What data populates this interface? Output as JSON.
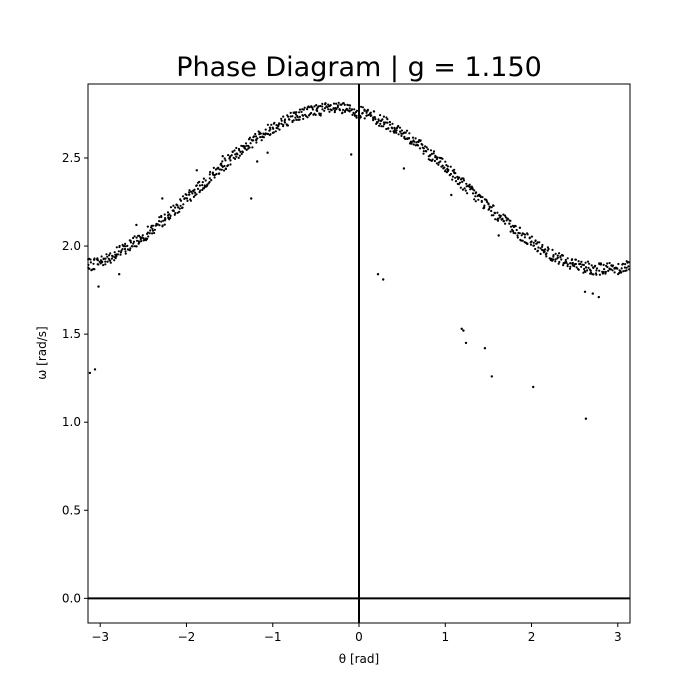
{
  "chart_data": {
    "type": "scatter",
    "title": "Phase Diagram | g = 1.150",
    "xlabel": "θ [rad]",
    "ylabel": "ω [rad/s]",
    "xlim": [
      -3.1416,
      3.1416
    ],
    "ylim": [
      -0.14,
      2.92
    ],
    "xticks": [
      -3,
      -2,
      -1,
      0,
      1,
      2,
      3
    ],
    "xtick_labels": [
      "−3",
      "−2",
      "−1",
      "0",
      "1",
      "2",
      "3"
    ],
    "yticks": [
      0.0,
      0.5,
      1.0,
      1.5,
      2.0,
      2.5
    ],
    "ytick_labels": [
      "0.0",
      "0.5",
      "1.0",
      "1.5",
      "2.0",
      "2.5"
    ],
    "reference_lines": {
      "horizontal_y": 0,
      "vertical_x": 0
    },
    "grid": false,
    "marker_color": "#000000",
    "band": {
      "description_formula": "omega = 2.325 + 0.455*cos(theta + 0.3)",
      "x_start": -3.14,
      "x_end": 3.14,
      "x_step": 0.02,
      "omega_center": 2.325,
      "omega_amplitude": 0.455,
      "phase_shift": 0.3,
      "spread": 0.035
    },
    "outliers": [
      {
        "x": -3.12,
        "y": 1.28
      },
      {
        "x": -3.06,
        "y": 1.3
      },
      {
        "x": -3.02,
        "y": 1.77
      },
      {
        "x": -2.78,
        "y": 1.84
      },
      {
        "x": -2.58,
        "y": 2.12
      },
      {
        "x": -2.28,
        "y": 2.27
      },
      {
        "x": -1.88,
        "y": 2.43
      },
      {
        "x": -1.58,
        "y": 2.51
      },
      {
        "x": -1.25,
        "y": 2.27
      },
      {
        "x": -1.18,
        "y": 2.48
      },
      {
        "x": -1.06,
        "y": 2.53
      },
      {
        "x": -0.09,
        "y": 2.52
      },
      {
        "x": 0.22,
        "y": 1.84
      },
      {
        "x": 0.28,
        "y": 1.81
      },
      {
        "x": 0.52,
        "y": 2.44
      },
      {
        "x": 1.07,
        "y": 2.29
      },
      {
        "x": 1.19,
        "y": 1.53
      },
      {
        "x": 1.21,
        "y": 1.52
      },
      {
        "x": 1.24,
        "y": 1.45
      },
      {
        "x": 1.46,
        "y": 1.42
      },
      {
        "x": 1.54,
        "y": 1.26
      },
      {
        "x": 1.62,
        "y": 2.06
      },
      {
        "x": 2.02,
        "y": 1.2
      },
      {
        "x": 2.62,
        "y": 1.74
      },
      {
        "x": 2.63,
        "y": 1.02
      },
      {
        "x": 2.71,
        "y": 1.73
      },
      {
        "x": 2.78,
        "y": 1.71
      }
    ]
  }
}
